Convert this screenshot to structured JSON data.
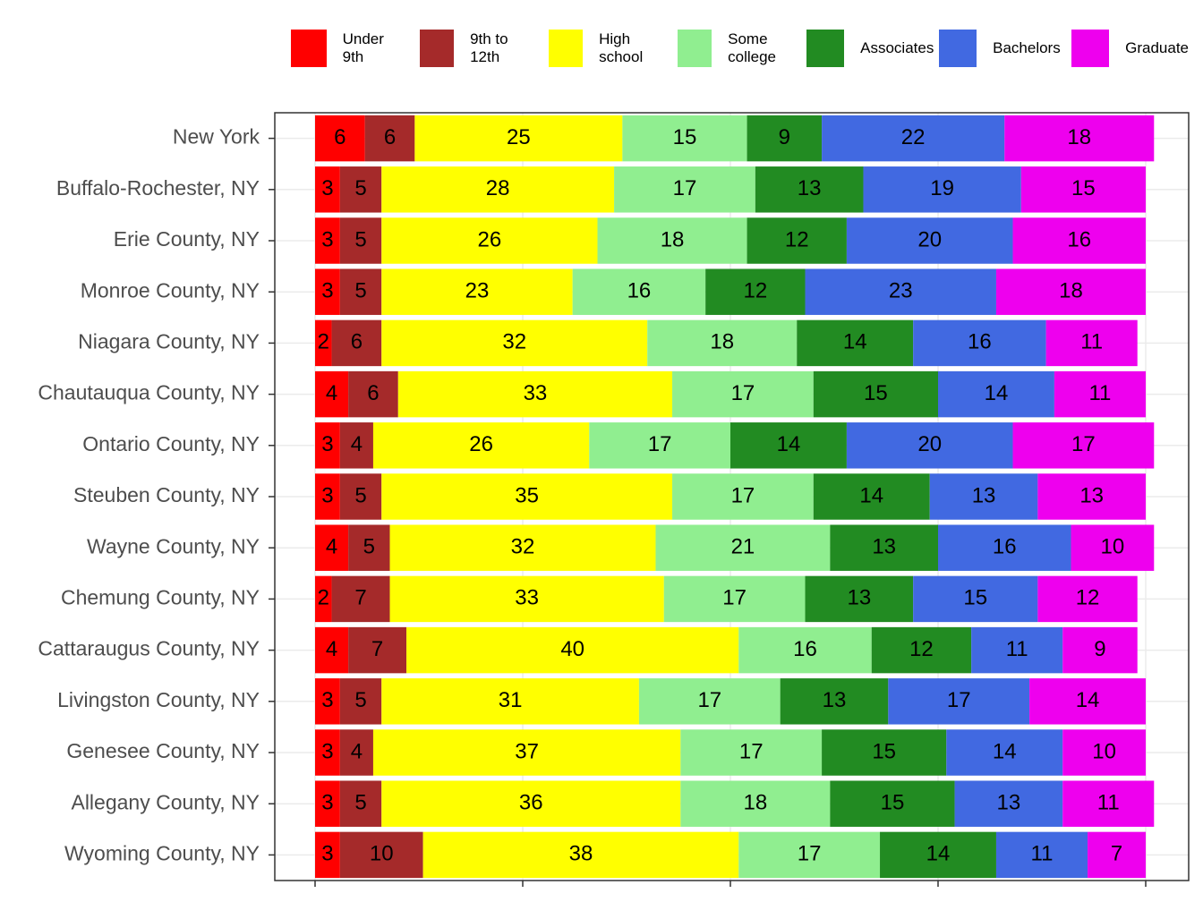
{
  "chart_data": {
    "type": "stacked-bar-horizontal",
    "categories": [
      "New York",
      "Buffalo-Rochester, NY",
      "Erie County, NY",
      "Monroe County, NY",
      "Niagara County, NY",
      "Chautauqua County, NY",
      "Ontario County, NY",
      "Steuben County, NY",
      "Wayne County, NY",
      "Chemung County, NY",
      "Cattaraugus County, NY",
      "Livingston County, NY",
      "Genesee County, NY",
      "Allegany County, NY",
      "Wyoming County, NY"
    ],
    "series": [
      {
        "name": "Under 9th",
        "color": "#ff0000",
        "values": [
          6,
          3,
          3,
          3,
          2,
          4,
          3,
          3,
          4,
          2,
          4,
          3,
          3,
          3,
          3
        ]
      },
      {
        "name": "9th to 12th",
        "color": "#a52a2a",
        "values": [
          6,
          5,
          5,
          5,
          6,
          6,
          4,
          5,
          5,
          7,
          7,
          5,
          4,
          5,
          10
        ]
      },
      {
        "name": "High school",
        "color": "#ffff00",
        "values": [
          25,
          28,
          26,
          23,
          32,
          33,
          26,
          35,
          32,
          33,
          40,
          31,
          37,
          36,
          38
        ]
      },
      {
        "name": "Some college",
        "color": "#90ee90",
        "values": [
          15,
          17,
          18,
          16,
          18,
          17,
          17,
          17,
          21,
          17,
          16,
          17,
          17,
          18,
          17
        ]
      },
      {
        "name": "Associates",
        "color": "#228b22",
        "values": [
          9,
          13,
          12,
          12,
          14,
          15,
          14,
          14,
          13,
          13,
          12,
          13,
          15,
          15,
          14
        ]
      },
      {
        "name": "Bachelors",
        "color": "#4169e1",
        "values": [
          22,
          19,
          20,
          23,
          16,
          14,
          20,
          13,
          16,
          15,
          11,
          17,
          14,
          13,
          11
        ]
      },
      {
        "name": "Graduate",
        "color": "#ee00ee",
        "values": [
          18,
          15,
          16,
          18,
          11,
          11,
          17,
          13,
          10,
          12,
          9,
          14,
          10,
          11,
          7
        ]
      }
    ],
    "xlim": [
      0,
      100
    ],
    "xticks": [
      0,
      25,
      50,
      75,
      100
    ],
    "grid": true,
    "legend": "top"
  }
}
